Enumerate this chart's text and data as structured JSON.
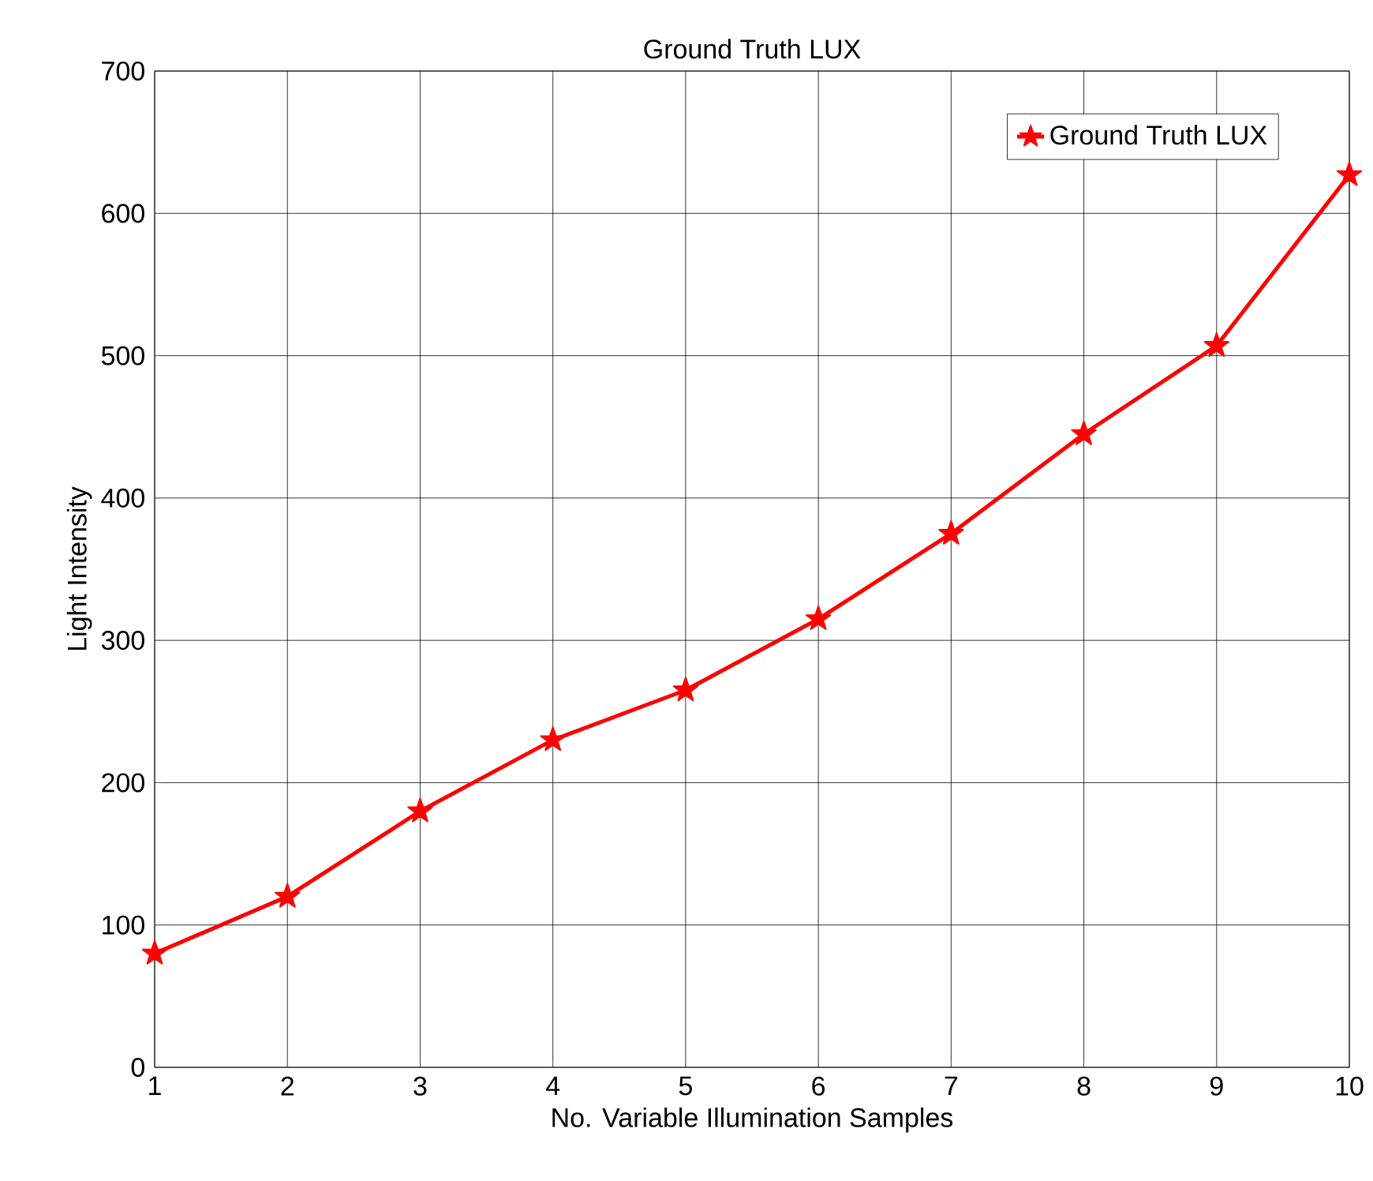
{
  "chart_data": {
    "type": "line",
    "title": "Ground Truth LUX",
    "xlabel": "No. Variable Illumination Samples",
    "ylabel": "Light Intensity",
    "x": [
      1,
      2,
      3,
      4,
      5,
      6,
      7,
      8,
      9,
      10
    ],
    "series": [
      {
        "name": "Ground Truth LUX",
        "color": "#ff0000",
        "values": [
          80,
          120,
          180,
          230,
          265,
          315,
          375,
          445,
          507,
          627
        ]
      }
    ],
    "xlim": [
      1,
      10
    ],
    "ylim": [
      0,
      700
    ],
    "xticks": [
      1,
      2,
      3,
      4,
      5,
      6,
      7,
      8,
      9,
      10
    ],
    "yticks": [
      0,
      100,
      200,
      300,
      400,
      500,
      600,
      700
    ],
    "grid": true,
    "legend": "top right",
    "marker": "star",
    "line_style": "solid"
  }
}
